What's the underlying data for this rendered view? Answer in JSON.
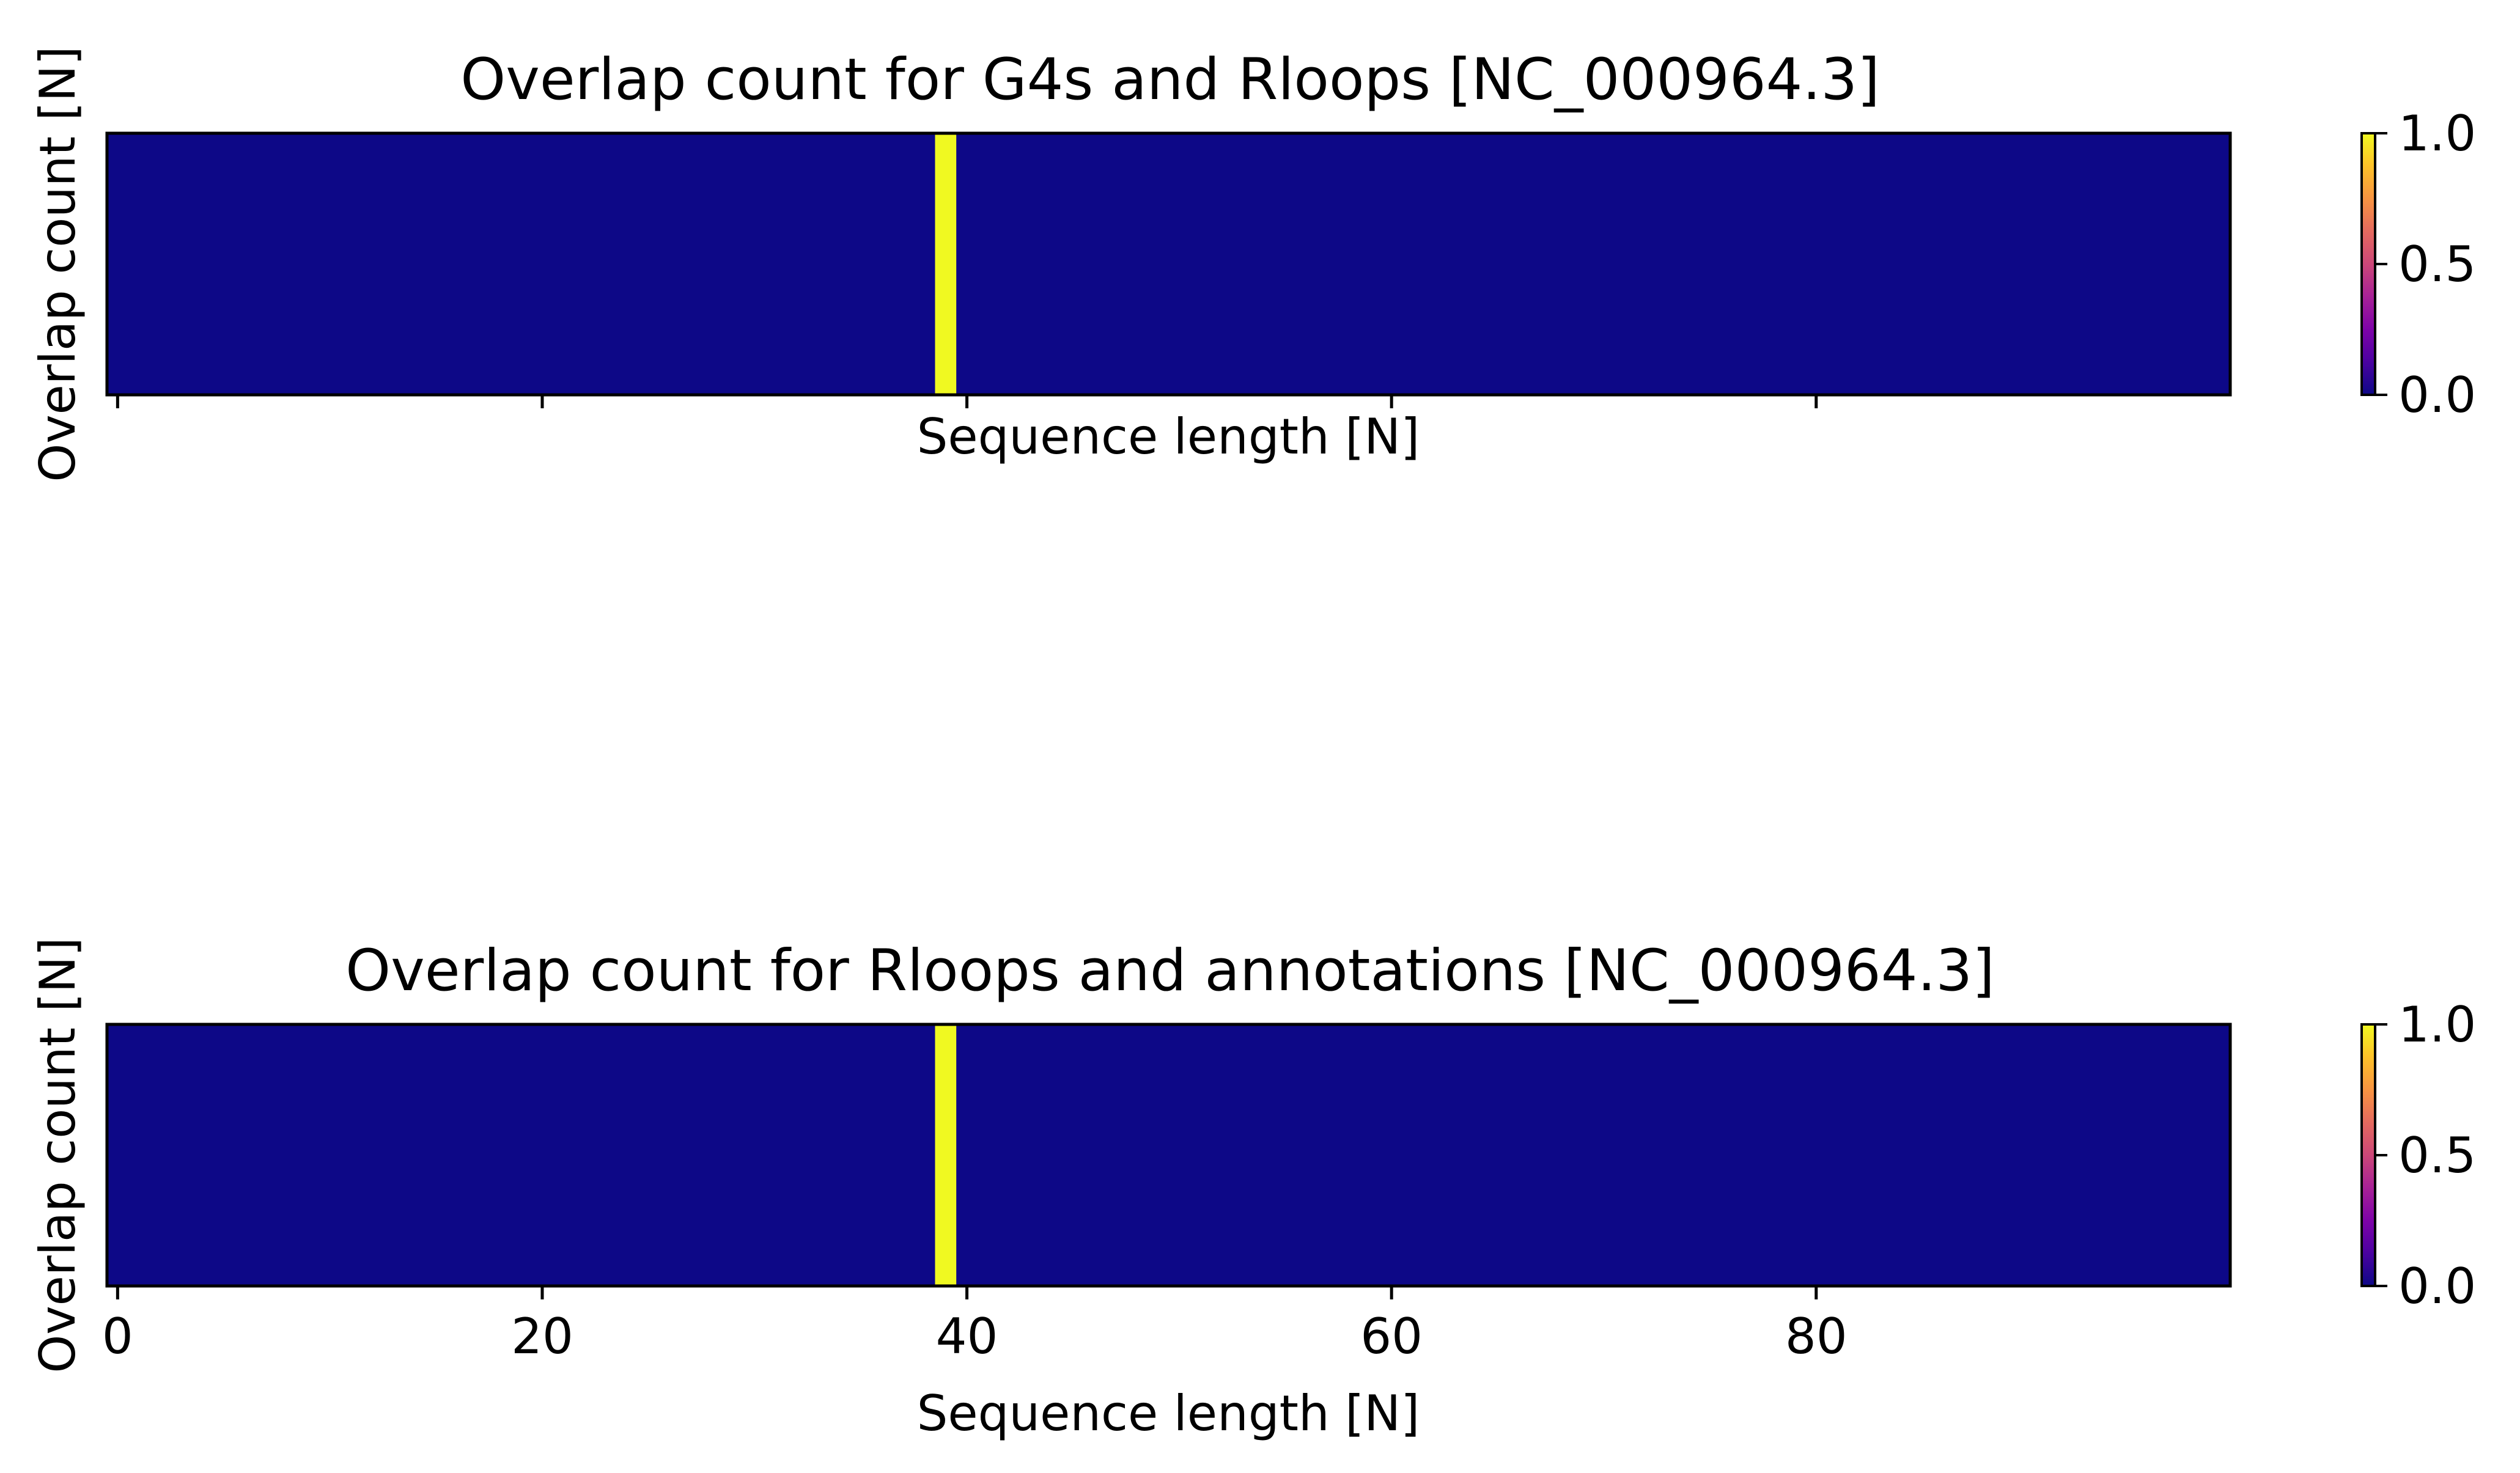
{
  "chart_data": [
    {
      "type": "heatmap",
      "title": "Overlap count for G4s and Rloops [NC_000964.3]",
      "xlabel": "Sequence length [N]",
      "ylabel": "Overlap count [N]",
      "xlim": [
        -0.5,
        99.5
      ],
      "x_ticks": [
        0,
        20,
        40,
        60,
        80
      ],
      "x_tick_labels_shown": false,
      "length": 100,
      "highlight": [
        {
          "index": 39,
          "value": 1
        }
      ],
      "colorbar": {
        "min": 0,
        "max": 1,
        "ticks": [
          "0.0",
          "0.5",
          "1.0"
        ]
      }
    },
    {
      "type": "heatmap",
      "title": "Overlap count for Rloops and annotations [NC_000964.3]",
      "xlabel": "Sequence length [N]",
      "ylabel": "Overlap count [N]",
      "xlim": [
        -0.5,
        99.5
      ],
      "x_ticks": [
        0,
        20,
        40,
        60,
        80
      ],
      "x_tick_labels": [
        "0",
        "20",
        "40",
        "60",
        "80"
      ],
      "x_tick_labels_shown": true,
      "length": 100,
      "highlight": [
        {
          "index": 39,
          "value": 1
        }
      ],
      "colorbar": {
        "min": 0,
        "max": 1,
        "ticks": [
          "0.0",
          "0.5",
          "1.0"
        ]
      }
    }
  ],
  "colors": {
    "low": "#0d0887",
    "mid": "#cc4778",
    "high": "#f0f921",
    "axis": "#000000"
  }
}
